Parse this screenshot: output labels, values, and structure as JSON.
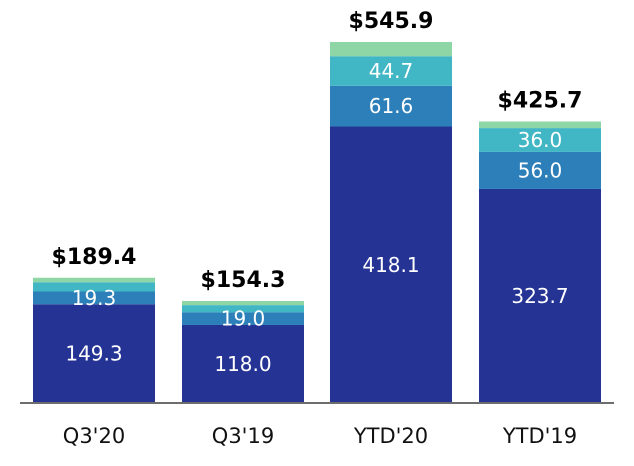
{
  "chart_data": {
    "type": "bar",
    "stacked": true,
    "categories": [
      "Q3'20",
      "Q3'19",
      "YTD'20",
      "YTD'19"
    ],
    "series": [
      {
        "color": "#253494",
        "values": [
          149.3,
          118.0,
          418.1,
          323.7
        ]
      },
      {
        "color": "#2c7fb8",
        "values": [
          19.3,
          19.0,
          61.6,
          56.0
        ]
      },
      {
        "color": "#41b6c4",
        "values": [
          14.0,
          11.0,
          44.7,
          36.0
        ]
      },
      {
        "color": "#8fd6a6",
        "values": [
          6.8,
          6.3,
          21.5,
          10.0
        ]
      }
    ],
    "segment_labels": [
      [
        "149.3",
        "19.3",
        "",
        ""
      ],
      [
        "118.0",
        "19.0",
        "",
        ""
      ],
      [
        "418.1",
        "61.6",
        "44.7",
        ""
      ],
      [
        "323.7",
        "56.0",
        "36.0",
        ""
      ]
    ],
    "totals": [
      "$189.4",
      "$154.3",
      "$545.9",
      "$425.7"
    ],
    "total_values": [
      189.4,
      154.3,
      545.9,
      425.7
    ],
    "ylim": [
      0,
      545.9
    ],
    "grid": false,
    "legend": "none",
    "baseline_color": "#6d6d6d"
  }
}
